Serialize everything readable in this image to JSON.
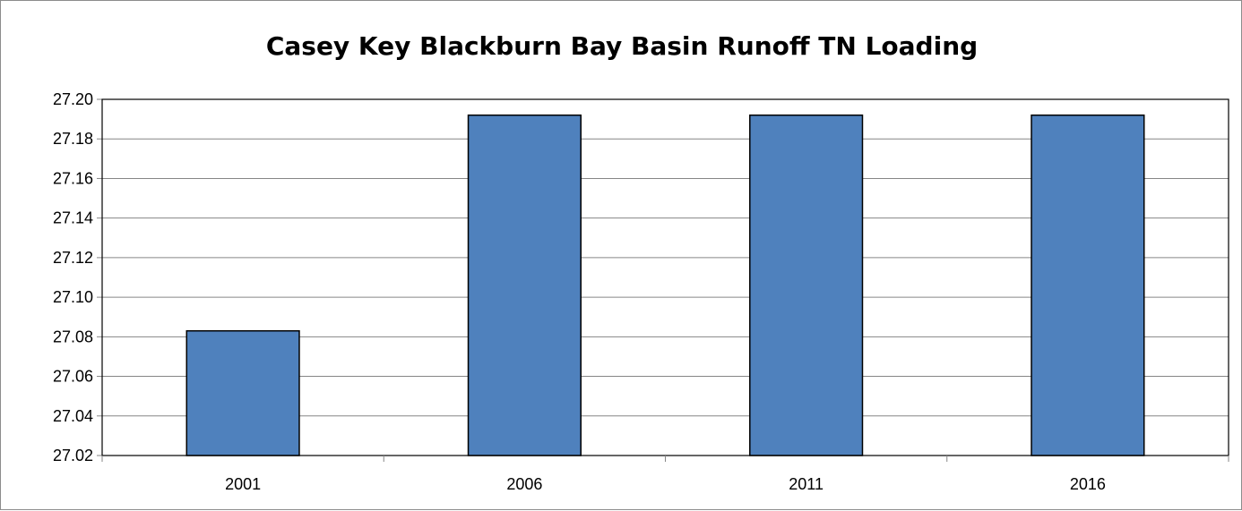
{
  "chart_data": {
    "type": "bar",
    "title": "Casey Key Blackburn Bay Basin Runoff TN Loading",
    "xlabel": "",
    "ylabel": "",
    "categories": [
      "2001",
      "2006",
      "2011",
      "2016"
    ],
    "values": [
      27.083,
      27.192,
      27.192,
      27.192
    ],
    "ylim": [
      27.02,
      27.2
    ],
    "yticks": [
      "27.02",
      "27.04",
      "27.06",
      "27.08",
      "27.10",
      "27.12",
      "27.14",
      "27.16",
      "27.18",
      "27.20"
    ],
    "grid": true,
    "legend": "none",
    "bar_color": "#4F81BD",
    "bar_edge_color": "#000000",
    "grid_color": "#868686"
  }
}
